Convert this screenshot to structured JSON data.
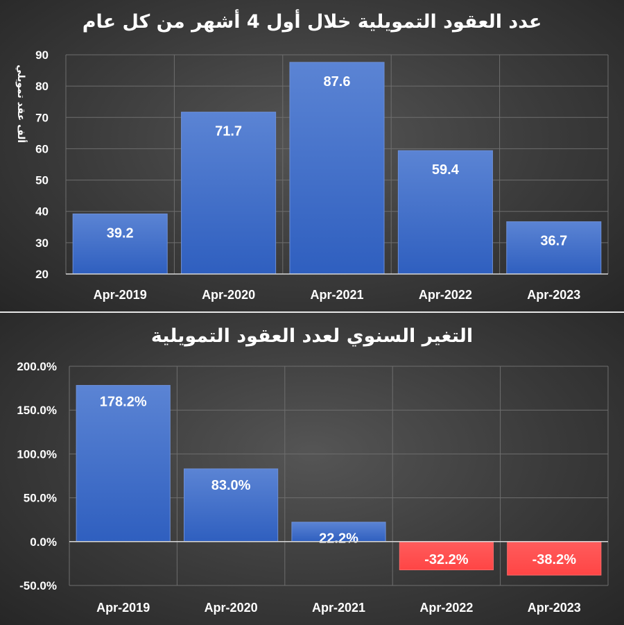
{
  "chart_data": [
    {
      "type": "bar",
      "title": "عدد العقود التمويلية خلال أول 4 أشهر من كل عام",
      "ylabel": "ألف عقد تمويلي",
      "xlabel": "",
      "categories": [
        "Apr-2019",
        "Apr-2020",
        "Apr-2021",
        "Apr-2022",
        "Apr-2023"
      ],
      "values": [
        39.2,
        71.7,
        87.6,
        59.4,
        36.7
      ],
      "data_labels": [
        "39.2",
        "71.7",
        "87.6",
        "59.4",
        "36.7"
      ],
      "ylim": [
        20,
        90
      ],
      "yticks": [
        "20",
        "30",
        "40",
        "50",
        "60",
        "70",
        "80",
        "90"
      ],
      "grid": true,
      "bar_color": "#4472c4"
    },
    {
      "type": "bar",
      "title": "التغير السنوي لعدد العقود التمويلية",
      "xlabel": "",
      "ylabel": "",
      "categories": [
        "Apr-2019",
        "Apr-2020",
        "Apr-2021",
        "Apr-2022",
        "Apr-2023"
      ],
      "values": [
        178.2,
        83.0,
        22.2,
        -32.2,
        -38.2
      ],
      "data_labels": [
        "178.2%",
        "83.0%",
        "22.2%",
        "-32.2%",
        "-38.2%"
      ],
      "ylim": [
        -50,
        200
      ],
      "yticks": [
        "-50.0%",
        "0.0%",
        "50.0%",
        "100.0%",
        "150.0%",
        "200.0%"
      ],
      "grid": true,
      "positive_color": "#4472c4",
      "negative_color": "#ff4b4b"
    }
  ]
}
